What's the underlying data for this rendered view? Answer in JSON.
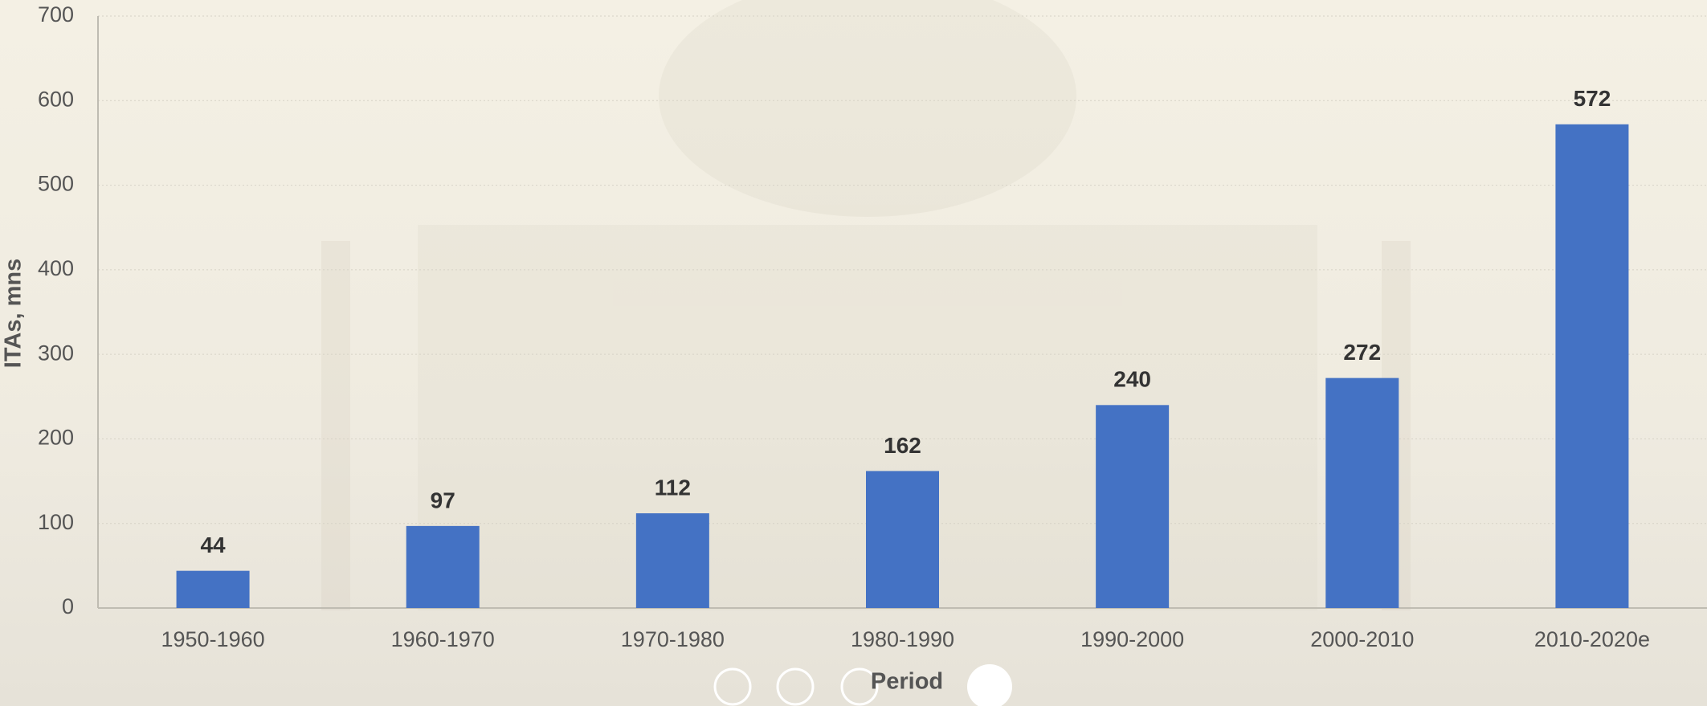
{
  "chart_data": {
    "type": "bar",
    "categories": [
      "1950-1960",
      "1960-1970",
      "1970-1980",
      "1980-1990",
      "1990-2000",
      "2000-2010",
      "2010-2020e"
    ],
    "values": [
      44,
      97,
      112,
      162,
      240,
      272,
      572
    ],
    "color": "#4472c4",
    "x_label": "Period",
    "y_label": "ITAs, mns",
    "ylim": [
      0,
      700
    ],
    "yticks": [
      0,
      100,
      200,
      300,
      400,
      500,
      600,
      700
    ],
    "grid": true
  }
}
